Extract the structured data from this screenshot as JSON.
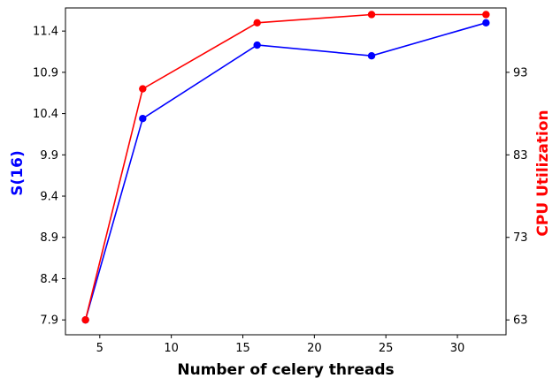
{
  "chart_data": {
    "type": "line",
    "xlabel": "Number of celery threads",
    "ylabel_left": "S(16)",
    "ylabel_right": "CPU Utilization",
    "x": [
      4,
      8,
      16,
      24,
      32
    ],
    "x_ticks": [
      5,
      10,
      15,
      20,
      25,
      30
    ],
    "xlim": [
      2.6,
      33.4
    ],
    "y_left_ticks": [
      7.9,
      8.4,
      8.9,
      9.4,
      9.9,
      10.4,
      10.9,
      11.4
    ],
    "y_left_lim": [
      7.72,
      11.68
    ],
    "y_right_ticks": [
      63,
      73,
      83,
      93
    ],
    "y_right_lim": [
      61.2,
      100.8
    ],
    "series": [
      {
        "axis": "left",
        "color": "#0000ff",
        "values": [
          7.9,
          10.34,
          11.23,
          11.1,
          11.5
        ]
      },
      {
        "axis": "right",
        "color": "#ff0000",
        "values": [
          63.0,
          91.0,
          99.0,
          100.0,
          100.0
        ]
      }
    ]
  }
}
